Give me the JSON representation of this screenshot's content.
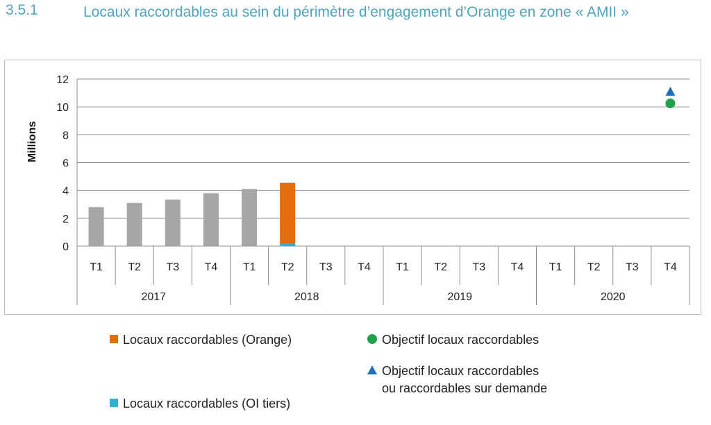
{
  "heading": {
    "number": "3.5.1",
    "title": "Locaux raccordables au sein du périmètre d’engagement d’Orange en zone « AMII »"
  },
  "colors": {
    "gray_bar": "#a6a6a6",
    "orange": "#e46c0a",
    "oi_tiers": "#31b0d5",
    "objective_circle": "#1fa34a",
    "objective_triangle": "#1f6fb8",
    "title": "#4fa3bf"
  },
  "legend": {
    "orange": "Locaux raccordables (Orange)",
    "oi_tiers": "Locaux raccordables (OI tiers)",
    "objective": "Objectif locaux raccordables",
    "objective_demand_line1": "Objectif locaux raccordables",
    "objective_demand_line2": "ou raccordables sur demande"
  },
  "chart_data": {
    "type": "bar",
    "ylabel": "Millions",
    "ylim": [
      0,
      12
    ],
    "yticks": [
      0,
      2,
      4,
      6,
      8,
      10,
      12
    ],
    "grid": true,
    "legend_placement": "bottom",
    "categories": [
      "T1",
      "T2",
      "T3",
      "T4",
      "T1",
      "T2",
      "T3",
      "T4",
      "T1",
      "T2",
      "T3",
      "T4",
      "T1",
      "T2",
      "T3",
      "T4"
    ],
    "years": [
      {
        "label": "2017",
        "span": 4
      },
      {
        "label": "2018",
        "span": 4
      },
      {
        "label": "2019",
        "span": 4
      },
      {
        "label": "2020",
        "span": 4
      }
    ],
    "series": [
      {
        "kind": "bar",
        "color_key": "gray_bar",
        "values": [
          2.8,
          3.1,
          3.35,
          3.8,
          4.1,
          null,
          null,
          null,
          null,
          null,
          null,
          null,
          null,
          null,
          null,
          null
        ]
      },
      {
        "name": "Locaux raccordables (OI tiers)",
        "kind": "stacked_bar",
        "color_key": "oi_tiers",
        "values": [
          null,
          null,
          null,
          null,
          null,
          0.2,
          null,
          null,
          null,
          null,
          null,
          null,
          null,
          null,
          null,
          null
        ]
      },
      {
        "name": "Locaux raccordables (Orange)",
        "kind": "stacked_bar",
        "color_key": "orange",
        "values": [
          null,
          null,
          null,
          null,
          null,
          4.35,
          null,
          null,
          null,
          null,
          null,
          null,
          null,
          null,
          null,
          null
        ]
      },
      {
        "name": "Objectif locaux raccordables",
        "kind": "marker_circle",
        "color_key": "objective_circle",
        "values": [
          null,
          null,
          null,
          null,
          null,
          null,
          null,
          null,
          null,
          null,
          null,
          null,
          null,
          null,
          null,
          10.25
        ]
      },
      {
        "name": "Objectif locaux raccordables ou raccordables sur demande",
        "kind": "marker_triangle",
        "color_key": "objective_triangle",
        "values": [
          null,
          null,
          null,
          null,
          null,
          null,
          null,
          null,
          null,
          null,
          null,
          null,
          null,
          null,
          null,
          11.1
        ]
      }
    ]
  }
}
